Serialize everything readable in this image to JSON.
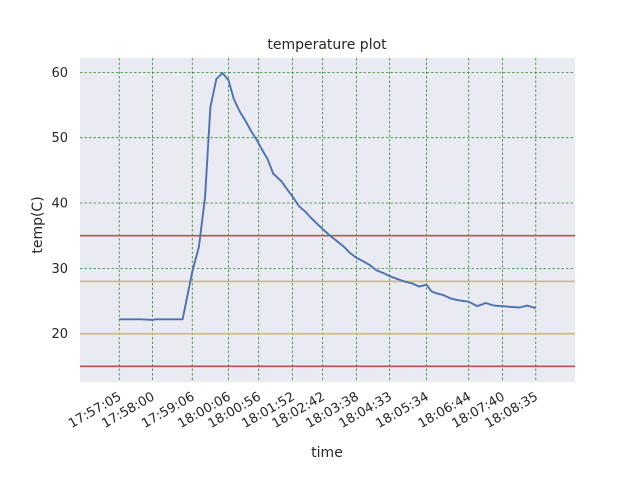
{
  "chart_data": {
    "type": "line",
    "title": "temperature plot",
    "xlabel": "time",
    "ylabel": "temp(C)",
    "x_tick_labels": [
      "17:57:05",
      "17:58:00",
      "17:59:06",
      "18:00:06",
      "18:00:56",
      "18:01:52",
      "18:02:42",
      "18:03:38",
      "18:04:33",
      "18:05:34",
      "18:06:44",
      "18:07:40",
      "18:08:35"
    ],
    "y_ticks": [
      20,
      30,
      40,
      50,
      60
    ],
    "ylim": [
      12.6,
      62.2
    ],
    "grid": true,
    "background_color": "#eaeaf2",
    "x_values": [
      "17:57:05",
      "17:57:23",
      "17:57:42",
      "17:58:00",
      "17:58:05",
      "17:58:20",
      "17:58:35",
      "17:58:50",
      "17:59:06",
      "17:59:17",
      "17:59:27",
      "17:59:36",
      "17:59:46",
      "17:59:56",
      "18:00:06",
      "18:00:15",
      "18:00:24",
      "18:00:34",
      "18:00:43",
      "18:00:53",
      "18:01:02",
      "18:01:11",
      "18:01:20",
      "18:01:34",
      "18:01:43",
      "18:01:52",
      "18:02:03",
      "18:02:13",
      "18:02:22",
      "18:02:32",
      "18:02:42",
      "18:02:53",
      "18:03:05",
      "18:03:16",
      "18:03:27",
      "18:03:38",
      "18:03:49",
      "18:04:00",
      "18:04:11",
      "18:04:22",
      "18:04:33",
      "18:04:45",
      "18:04:57",
      "18:05:10",
      "18:05:22",
      "18:05:34",
      "18:05:42",
      "18:05:50",
      "18:06:02",
      "18:06:14",
      "18:06:27",
      "18:06:44",
      "18:06:58",
      "18:07:12",
      "18:07:26",
      "18:07:40",
      "18:07:54",
      "18:08:08",
      "18:08:21",
      "18:08:35"
    ],
    "series": [
      {
        "color": "#4c72b0",
        "values": [
          22.2,
          22.2,
          22.2,
          22.1,
          22.2,
          22.2,
          22.2,
          22.2,
          29.5,
          33.3,
          40.8,
          54.7,
          59.0,
          59.9,
          58.8,
          55.9,
          54.1,
          52.6,
          51.1,
          49.6,
          48.1,
          46.7,
          44.5,
          43.3,
          42.1,
          41.0,
          39.5,
          38.7,
          37.8,
          36.9,
          36.0,
          35.1,
          34.2,
          33.4,
          32.4,
          31.6,
          31.1,
          30.5,
          29.7,
          29.3,
          28.8,
          28.4,
          28.0,
          27.7,
          27.2,
          27.5,
          26.5,
          26.2,
          25.9,
          25.4,
          25.1,
          24.9,
          24.2,
          24.7,
          24.3,
          24.2,
          24.1,
          24.0,
          24.3,
          23.9
        ]
      }
    ],
    "reference_lines": [
      {
        "value": 35,
        "color": "#c44e52"
      },
      {
        "value": 28,
        "color": "#ccb974"
      },
      {
        "value": 20,
        "color": "#ccb974"
      },
      {
        "value": 15,
        "color": "#c44e52"
      }
    ]
  }
}
